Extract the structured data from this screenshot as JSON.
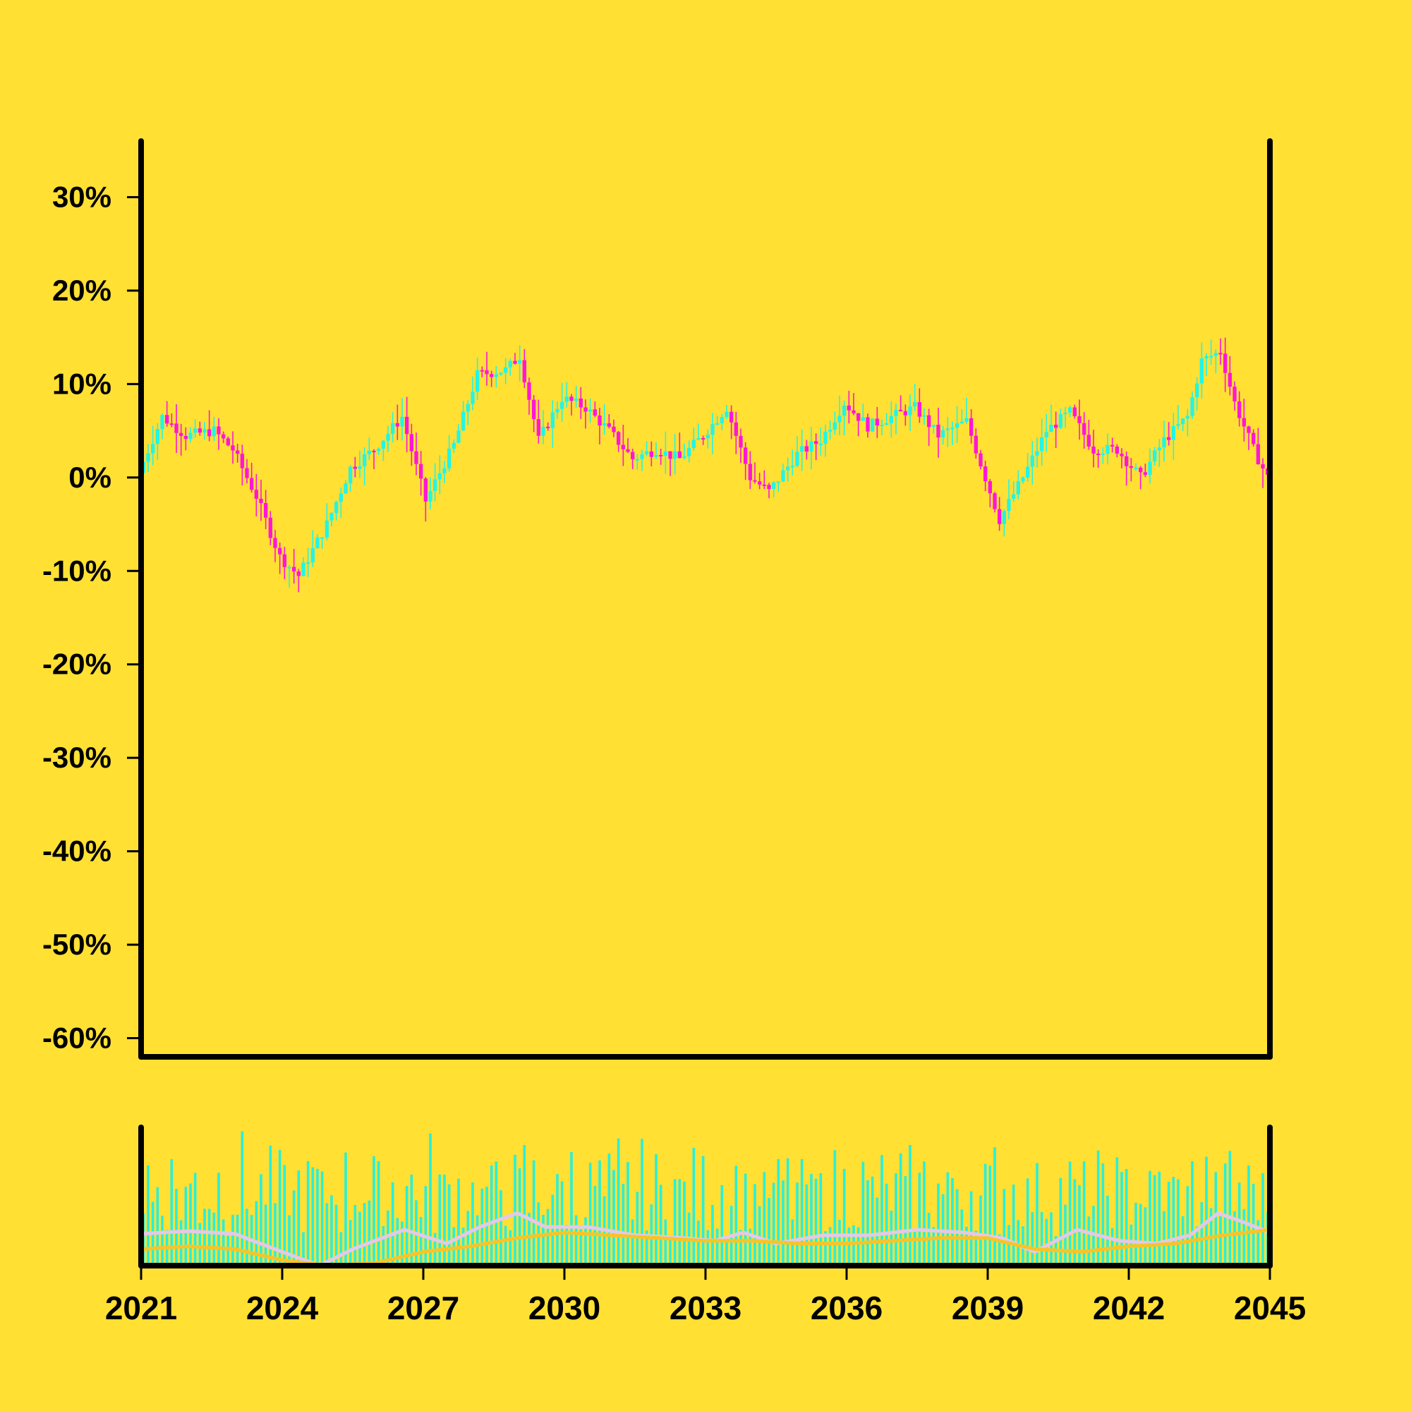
{
  "colors": {
    "background": "#FFE033",
    "axis": "#000000",
    "up": "#22F5E6",
    "down": "#FF16D6",
    "volume": "#2BEFD8",
    "ma_fast": "#E4C8E8",
    "ma_slow": "#F7C42A"
  },
  "chart_data": [
    {
      "type": "candlestick",
      "title": "",
      "xlabel": "",
      "ylabel": "",
      "y_unit": "%",
      "ylim": [
        -62,
        36
      ],
      "yticks": [
        30,
        20,
        10,
        0,
        -10,
        -20,
        -30,
        -40,
        -50,
        -60
      ],
      "ytick_labels": [
        "30%",
        "20%",
        "10%",
        "0%",
        "-10%",
        "-20%",
        "-30%",
        "-40%",
        "-50%",
        "-60%"
      ],
      "xlim": [
        2021.0,
        2045.0
      ],
      "grid": false,
      "legend": "none",
      "close_path_years": [
        2021.0,
        2021.5,
        2022.0,
        2022.6,
        2023.0,
        2023.5,
        2024.0,
        2024.4,
        2025.0,
        2025.5,
        2026.0,
        2026.6,
        2027.1,
        2027.7,
        2028.2,
        2028.8,
        2029.1,
        2029.5,
        2030.0,
        2030.5,
        2031.0,
        2031.5,
        2032.0,
        2032.5,
        2033.0,
        2033.5,
        2034.0,
        2034.4,
        2035.0,
        2035.5,
        2036.0,
        2036.5,
        2037.0,
        2037.5,
        2038.0,
        2038.6,
        2039.0,
        2039.3,
        2039.8,
        2040.3,
        2040.8,
        2041.3,
        2041.8,
        2042.3,
        2042.8,
        2043.3,
        2043.6,
        2044.0,
        2044.3,
        2044.7,
        2045.0
      ],
      "close_path_values": [
        0.5,
        6.5,
        4.5,
        5.0,
        3.0,
        -2.0,
        -8.5,
        -10.5,
        -5.0,
        1.0,
        3.0,
        6.5,
        -2.5,
        3.5,
        11.0,
        11.5,
        13.0,
        4.0,
        8.5,
        7.5,
        5.0,
        2.0,
        3.0,
        2.0,
        4.5,
        7.5,
        0.0,
        -1.5,
        2.5,
        4.0,
        8.0,
        5.5,
        6.5,
        7.5,
        4.5,
        6.0,
        0.0,
        -4.5,
        0.0,
        5.0,
        7.0,
        3.0,
        3.0,
        0.0,
        4.0,
        6.5,
        12.5,
        13.5,
        8.0,
        3.0,
        0.0
      ]
    },
    {
      "type": "bar",
      "title": "",
      "xlabel": "",
      "ylabel": "",
      "xlim": [
        2021.0,
        2045.0
      ],
      "xticks": [
        2021,
        2024,
        2027,
        2030,
        2033,
        2036,
        2039,
        2042,
        2045
      ],
      "xtick_labels": [
        "2021",
        "2024",
        "2027",
        "2030",
        "2033",
        "2036",
        "2039",
        "2042",
        "2045"
      ],
      "ylim": [
        0,
        1
      ],
      "bar_count": 240,
      "volume_level_note_values": [
        0.62,
        0.8,
        0.55,
        0.72,
        0.6,
        0.66,
        0.74,
        0.7,
        0.58,
        0.68
      ],
      "moving_averages": [
        {
          "x": [
            2021.0,
            2022.0,
            2023.0,
            2024.0,
            2024.8,
            2025.5,
            2026.6,
            2027.5,
            2028.2,
            2029.0,
            2029.6,
            2030.5,
            2031.5,
            2032.5,
            2033.2,
            2033.8,
            2034.5,
            2035.5,
            2036.5,
            2037.5,
            2038.5,
            2039.3,
            2040.0,
            2040.9,
            2041.8,
            2042.6,
            2043.3,
            2043.9,
            2044.4,
            2045.0
          ],
          "y": [
            0.23,
            0.25,
            0.23,
            0.1,
            0.0,
            0.12,
            0.26,
            0.16,
            0.28,
            0.38,
            0.28,
            0.28,
            0.22,
            0.2,
            0.18,
            0.24,
            0.16,
            0.22,
            0.22,
            0.26,
            0.24,
            0.2,
            0.1,
            0.26,
            0.18,
            0.16,
            0.22,
            0.38,
            0.32,
            0.24
          ]
        },
        {
          "x": [
            2021.0,
            2022.0,
            2023.0,
            2024.0,
            2025.0,
            2026.0,
            2027.0,
            2028.0,
            2029.0,
            2030.0,
            2031.0,
            2032.0,
            2033.0,
            2034.0,
            2035.0,
            2036.0,
            2037.0,
            2038.0,
            2039.0,
            2040.0,
            2041.0,
            2042.0,
            2043.0,
            2044.0,
            2045.0
          ],
          "y": [
            0.12,
            0.14,
            0.12,
            0.04,
            -0.04,
            0.02,
            0.1,
            0.14,
            0.2,
            0.24,
            0.22,
            0.2,
            0.18,
            0.18,
            0.16,
            0.16,
            0.18,
            0.2,
            0.2,
            0.12,
            0.1,
            0.14,
            0.16,
            0.22,
            0.26
          ]
        }
      ]
    }
  ]
}
